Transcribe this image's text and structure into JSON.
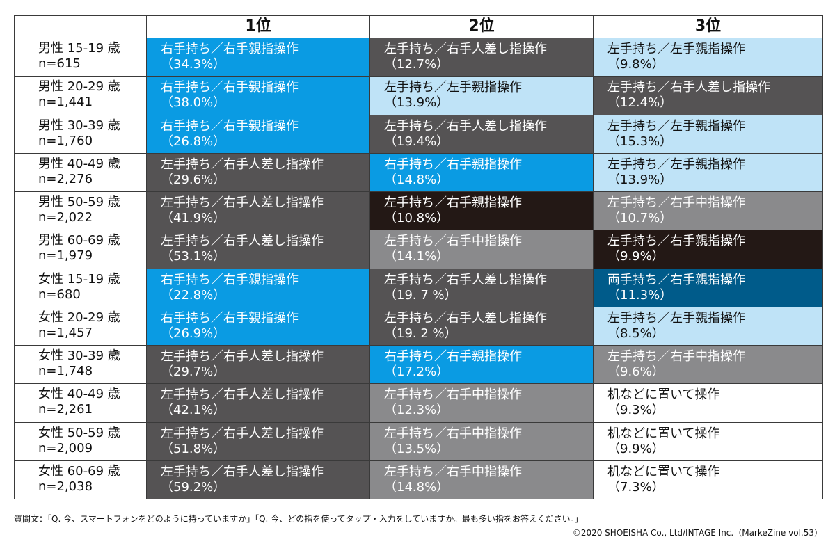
{
  "table": {
    "header": [
      "1位",
      "2位",
      "3位"
    ],
    "rows": [
      {
        "group": "男性 15-19 歳",
        "n": "n=615",
        "cells": [
          {
            "text": "右手持ち／右手親指操作",
            "share": "（34.3%）",
            "color": "#0a9be3"
          },
          {
            "text": "左手持ち／右手人差し指操作",
            "share": "（12.7%）",
            "color": "#555354"
          },
          {
            "text": "左手持ち／左手親指操作",
            "share": "（9.8%）",
            "color": "#bfe3f7"
          }
        ]
      },
      {
        "group": "男性 20-29 歳",
        "n": "n=1,441",
        "cells": [
          {
            "text": "右手持ち／右手親指操作",
            "share": "（38.0%）",
            "color": "#0a9be3"
          },
          {
            "text": "左手持ち／左手親指操作",
            "share": "（13.9%）",
            "color": "#bfe3f7"
          },
          {
            "text": "左手持ち／右手人差し指操作",
            "share": "（12.4%）",
            "color": "#555354"
          }
        ]
      },
      {
        "group": "男性 30-39 歳",
        "n": "n=1,760",
        "cells": [
          {
            "text": "右手持ち／右手親指操作",
            "share": "（26.8%）",
            "color": "#0a9be3"
          },
          {
            "text": "左手持ち／右手人差し指操作",
            "share": "（19.4%）",
            "color": "#555354"
          },
          {
            "text": "左手持ち／左手親指操作",
            "share": "（15.3%）",
            "color": "#bfe3f7"
          }
        ]
      },
      {
        "group": "男性 40-49 歳",
        "n": "n=2,276",
        "cells": [
          {
            "text": "左手持ち／右手人差し指操作",
            "share": "（29.6%）",
            "color": "#555354"
          },
          {
            "text": "右手持ち／右手親指操作",
            "share": "（14.8%）",
            "color": "#0a9be3"
          },
          {
            "text": "左手持ち／左手親指操作",
            "share": "（13.9%）",
            "color": "#bfe3f7"
          }
        ]
      },
      {
        "group": "男性 50-59 歳",
        "n": "n=2,022",
        "cells": [
          {
            "text": "左手持ち／右手人差し指操作",
            "share": "（41.9%）",
            "color": "#555354"
          },
          {
            "text": "左手持ち／右手親指操作",
            "share": "（10.8%）",
            "color": "#231815"
          },
          {
            "text": "左手持ち／右手中指操作",
            "share": "（10.7%）",
            "color": "#8a8a8c"
          }
        ]
      },
      {
        "group": "男性 60-69 歳",
        "n": "n=1,979",
        "cells": [
          {
            "text": "左手持ち／右手人差し指操作",
            "share": "（53.1%）",
            "color": "#555354"
          },
          {
            "text": "左手持ち／右手中指操作",
            "share": "（14.1%）",
            "color": "#8a8a8c"
          },
          {
            "text": "左手持ち／右手親指操作",
            "share": "（9.9%）",
            "color": "#231815"
          }
        ]
      },
      {
        "group": "女性 15-19 歳",
        "n": "n=680",
        "cells": [
          {
            "text": "右手持ち／右手親指操作",
            "share": "（22.8%）",
            "color": "#0a9be3"
          },
          {
            "text": "左手持ち／右手人差し指操作",
            "share": "（19. 7 %）",
            "color": "#555354"
          },
          {
            "text": "両手持ち／右手親指操作",
            "share": "（11.3%）",
            "color": "#005b8a"
          }
        ]
      },
      {
        "group": "女性 20-29 歳",
        "n": "n=1,457",
        "cells": [
          {
            "text": "右手持ち／右手親指操作",
            "share": "（26.9%）",
            "color": "#0a9be3"
          },
          {
            "text": "左手持ち／右手人差し指操作",
            "share": "（19. 2 %）",
            "color": "#555354"
          },
          {
            "text": "左手持ち／左手親指操作",
            "share": "（8.5%）",
            "color": "#bfe3f7"
          }
        ]
      },
      {
        "group": "女性 30-39 歳",
        "n": "n=1,748",
        "cells": [
          {
            "text": "左手持ち／右手人差し指操作",
            "share": "（29.7%）",
            "color": "#555354"
          },
          {
            "text": "右手持ち／右手親指操作",
            "share": "（17.2%）",
            "color": "#0a9be3"
          },
          {
            "text": "左手持ち／右手中指操作",
            "share": "（9.6%）",
            "color": "#8a8a8c"
          }
        ]
      },
      {
        "group": "女性 40-49 歳",
        "n": "n=2,261",
        "cells": [
          {
            "text": "左手持ち／右手人差し指操作",
            "share": "（42.1%）",
            "color": "#555354"
          },
          {
            "text": "左手持ち／右手中指操作",
            "share": "（12.3%）",
            "color": "#8a8a8c"
          },
          {
            "text": "机などに置いて操作",
            "share": "（9.3%）",
            "color": "#ffffff"
          }
        ]
      },
      {
        "group": "女性 50-59 歳",
        "n": "n=2,009",
        "cells": [
          {
            "text": "左手持ち／右手人差し指操作",
            "share": "（51.8%）",
            "color": "#555354"
          },
          {
            "text": "左手持ち／右手中指操作",
            "share": "（13.5%）",
            "color": "#8a8a8c"
          },
          {
            "text": "机などに置いて操作",
            "share": "（9.9%）",
            "color": "#ffffff"
          }
        ]
      },
      {
        "group": "女性 60-69 歳",
        "n": "n=2,038",
        "cells": [
          {
            "text": "左手持ち／右手人差し指操作",
            "share": "（59.2%）",
            "color": "#555354"
          },
          {
            "text": "左手持ち／右手中指操作",
            "share": "（14.8%）",
            "color": "#8a8a8c"
          },
          {
            "text": "机などに置いて操作",
            "share": "（7.3%）",
            "color": "#ffffff"
          }
        ]
      }
    ]
  },
  "footer": {
    "question": "質問文：「Q. 今、スマートフォンをどのように持っていますか」「Q. 今、どの指を使ってタップ・入力をしていますか。最も多い指をお答えください。」",
    "copyright": "©2020 SHOEISHA Co., Ltd/INTAGE Inc.（MarkeZine vol.53）"
  }
}
